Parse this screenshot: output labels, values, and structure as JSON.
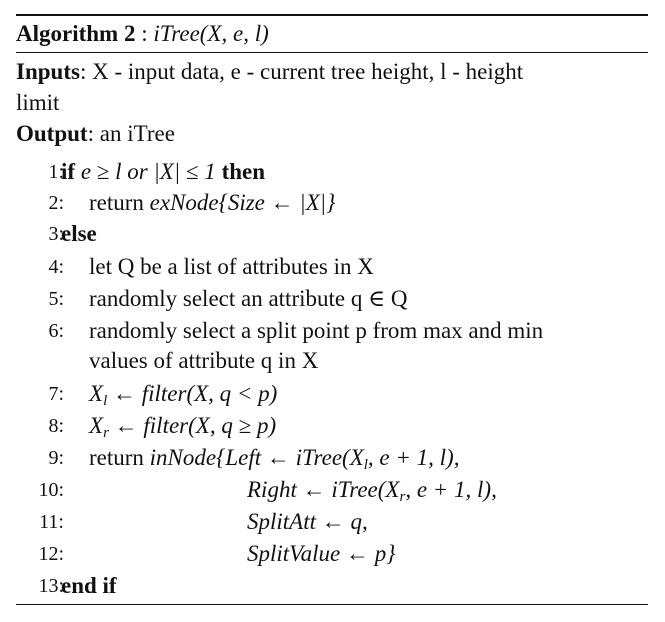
{
  "algorithm": {
    "label": "Algorithm 2",
    "sep": " : ",
    "signature": "iTree(X, e, l)"
  },
  "inputs": {
    "label": "Inputs",
    "line1": ": X - input data, e - current tree height, l - height",
    "line2": "limit"
  },
  "output": {
    "label": "Output",
    "text": ": an iTree"
  },
  "lines": [
    {
      "n": "1:",
      "kw1": "if",
      "text": " e ≥ l or |X| ≤ 1 ",
      "kw2": "then"
    },
    {
      "n": "2:",
      "pre": "return ",
      "fn": "exNode",
      "text": "{Size ← |X|}"
    },
    {
      "n": "3:",
      "kw1": "else"
    },
    {
      "n": "4:",
      "text": "let Q be a list of attributes in X"
    },
    {
      "n": "5:",
      "text": "randomly select an attribute q ∈ Q"
    },
    {
      "n": "6:",
      "text": "randomly select a split point p from max and min",
      "cont": "values of attribute q in X"
    },
    {
      "n": "7:",
      "var": "X",
      "sub": "l",
      "text": " ← filter(X, q < p)"
    },
    {
      "n": "8:",
      "var": "X",
      "sub": "r",
      "text": " ← filter(X, q ≥ p)"
    },
    {
      "n": "9:",
      "pre": "return ",
      "fn": "inNode",
      "text": "{Left ← iTree(X",
      "sub": "l",
      "text2": ", e + 1, l),"
    },
    {
      "n": "10:",
      "text": "Right ← iTree(X",
      "sub": "r",
      "text2": ", e + 1, l),"
    },
    {
      "n": "11:",
      "text": "SplitAtt ← q,"
    },
    {
      "n": "12:",
      "text": "SplitValue ← p}"
    },
    {
      "n": "13:",
      "kw1": "end if"
    }
  ]
}
